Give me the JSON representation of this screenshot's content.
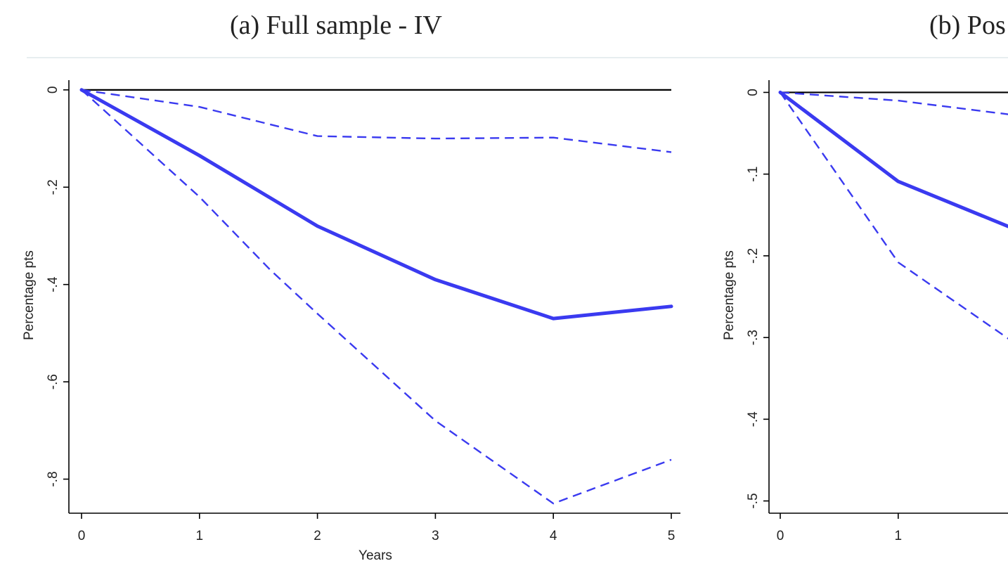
{
  "colors": {
    "series": "#3a3af0",
    "axis": "#000000",
    "text": "#222222",
    "rule": "#e7eef0"
  },
  "chart_data": [
    {
      "type": "line",
      "title": "(a) Full sample - IV",
      "xlabel": "Years",
      "ylabel": "Percentage pts",
      "xlim": [
        0,
        5
      ],
      "ylim": [
        -0.87,
        0.02
      ],
      "xticks": [
        0,
        1,
        2,
        3,
        4,
        5
      ],
      "xtick_labels": [
        "0",
        "1",
        "2",
        "3",
        "4",
        "5"
      ],
      "yticks": [
        0,
        -0.2,
        -0.4,
        -0.6,
        -0.8
      ],
      "ytick_labels": [
        "0",
        "-.2",
        "-.4",
        "-.6",
        "-.8"
      ],
      "zero_line": true,
      "grid": false,
      "legend": "none",
      "series": [
        {
          "style": "solid",
          "x": [
            0,
            1,
            2,
            3,
            4,
            5
          ],
          "values": [
            0,
            -0.135,
            -0.28,
            -0.39,
            -0.47,
            -0.445
          ]
        },
        {
          "style": "dashed",
          "x": [
            0,
            1,
            2,
            3,
            4,
            5
          ],
          "values": [
            0,
            -0.035,
            -0.095,
            -0.1,
            -0.098,
            -0.128
          ]
        },
        {
          "style": "dashed",
          "x": [
            0,
            1,
            1.6,
            2,
            3,
            4,
            5
          ],
          "values": [
            0,
            -0.22,
            -0.37,
            -0.46,
            -0.68,
            -0.85,
            -0.76
          ]
        }
      ]
    },
    {
      "type": "line",
      "title": "(b) Pos",
      "xlabel": "",
      "ylabel": "Percentage pts",
      "xlim": [
        0,
        5
      ],
      "ylim": [
        -0.515,
        0.015
      ],
      "xticks": [
        0,
        1
      ],
      "xtick_labels": [
        "0",
        "1"
      ],
      "yticks": [
        0,
        -0.1,
        -0.2,
        -0.3,
        -0.4,
        -0.5
      ],
      "ytick_labels": [
        "0",
        "-.1",
        "-.2",
        "-.3",
        "-.4",
        "-.5"
      ],
      "zero_line": true,
      "grid": false,
      "legend": "none",
      "series": [
        {
          "style": "solid",
          "x": [
            0,
            1,
            2
          ],
          "values": [
            0,
            -0.109,
            -0.168
          ]
        },
        {
          "style": "dashed",
          "x": [
            0,
            1,
            2
          ],
          "values": [
            0,
            -0.01,
            -0.028
          ]
        },
        {
          "style": "dashed",
          "x": [
            0,
            1,
            2
          ],
          "values": [
            0,
            -0.208,
            -0.308
          ]
        }
      ]
    }
  ]
}
